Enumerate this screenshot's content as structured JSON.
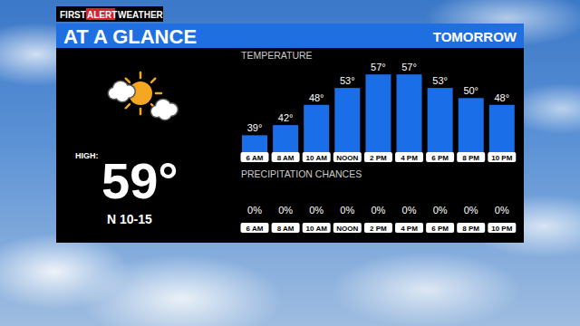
{
  "header": {
    "brand": [
      "FIRST",
      "ALERT",
      "WEATHER"
    ],
    "title": "AT A GLANCE",
    "period": "TOMORROW"
  },
  "summary": {
    "high_label": "HIGH:",
    "high": "59°",
    "wind": "N 10-15"
  },
  "chart_data": [
    {
      "type": "bar",
      "title": "TEMPERATURE",
      "categories": [
        "6 AM",
        "8 AM",
        "10 AM",
        "NOON",
        "2 PM",
        "4 PM",
        "6 PM",
        "8 PM",
        "10 PM"
      ],
      "values": [
        39,
        42,
        48,
        53,
        57,
        57,
        53,
        50,
        48
      ],
      "value_labels": [
        "39°",
        "42°",
        "48°",
        "53°",
        "57°",
        "57°",
        "53°",
        "50°",
        "48°"
      ],
      "color": "#1a6ee8",
      "ylim": [
        34,
        60
      ],
      "grid": false,
      "data_labels": true,
      "tick_labels": false
    },
    {
      "type": "bar",
      "title": "PRECIPITATION CHANCES",
      "categories": [
        "6 AM",
        "8 AM",
        "10 AM",
        "NOON",
        "2 PM",
        "4 PM",
        "6 PM",
        "8 PM",
        "10 PM"
      ],
      "values": [
        0,
        0,
        0,
        0,
        0,
        0,
        0,
        0,
        0
      ],
      "value_labels": [
        "0%",
        "0%",
        "0%",
        "0%",
        "0%",
        "0%",
        "0%",
        "0%",
        "0%"
      ],
      "color": "#1a6ee8",
      "ylim": [
        0,
        100
      ],
      "grid": false,
      "data_labels": true,
      "tick_labels": false
    }
  ]
}
